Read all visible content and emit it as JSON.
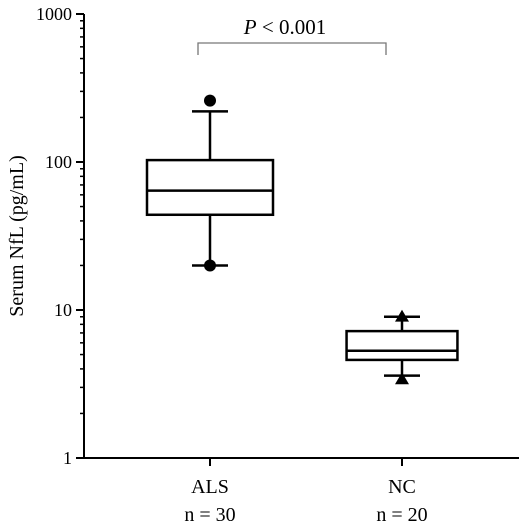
{
  "chart_data": {
    "type": "box",
    "ylabel": "Serum NfL (pg/mL)",
    "yscale": "log",
    "ylim": [
      1,
      1000
    ],
    "yticks": [
      {
        "value": 1,
        "label": "1"
      },
      {
        "value": 10,
        "label": "10"
      },
      {
        "value": 100,
        "label": "100"
      },
      {
        "value": 1000,
        "label": "1000"
      }
    ],
    "groups": [
      {
        "name": "ALS",
        "n_label": "n = 30",
        "whisker_low": 20,
        "q1": 44,
        "median": 64,
        "q3": 103,
        "whisker_high": 220,
        "outliers": [
          260,
          20
        ],
        "marker": "circle"
      },
      {
        "name": "NC",
        "n_label": "n = 20",
        "whisker_low": 3.6,
        "q1": 4.6,
        "median": 5.3,
        "q3": 7.2,
        "whisker_high": 9.0,
        "outliers": [
          9.0,
          3.4
        ],
        "marker": "triangle"
      }
    ],
    "annotation": {
      "p_italic": "P",
      "p_rest": " < 0.001"
    }
  }
}
